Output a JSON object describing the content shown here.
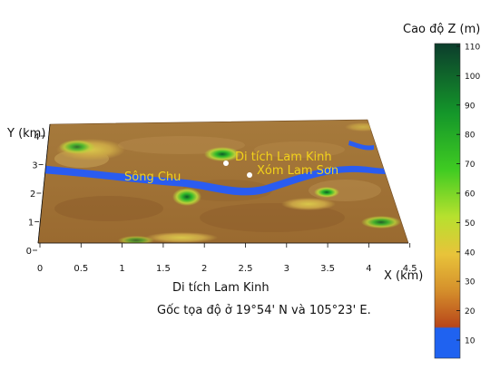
{
  "figure": {
    "caption_title": "Di tích Lam Kinh",
    "caption_origin": "Gốc tọa độ ở 19°54' N và 105°23' E."
  },
  "axes": {
    "x_label": "X (km)",
    "y_label": "Y (km)",
    "x_ticks": [
      "0",
      "0.5",
      "1",
      "1.5",
      "2",
      "2.5",
      "3",
      "3.5",
      "4",
      "4.5"
    ],
    "y_ticks": [
      "0",
      "1",
      "2",
      "3",
      "4"
    ]
  },
  "colorbar": {
    "title": "Cao độ Z (m)",
    "ticks": [
      "10",
      "20",
      "30",
      "40",
      "50",
      "60",
      "70",
      "80",
      "90",
      "100",
      "110"
    ],
    "colors": [
      "#1f62f0",
      "#b8461a",
      "#d6922c",
      "#e8c33a",
      "#b7e12e",
      "#3fcb22",
      "#14962a",
      "#0c3d2c"
    ]
  },
  "annotations": {
    "river": "Sông Chu",
    "site": "Di tích Lam Kinh",
    "village": "Xóm Lam Sơn"
  }
}
